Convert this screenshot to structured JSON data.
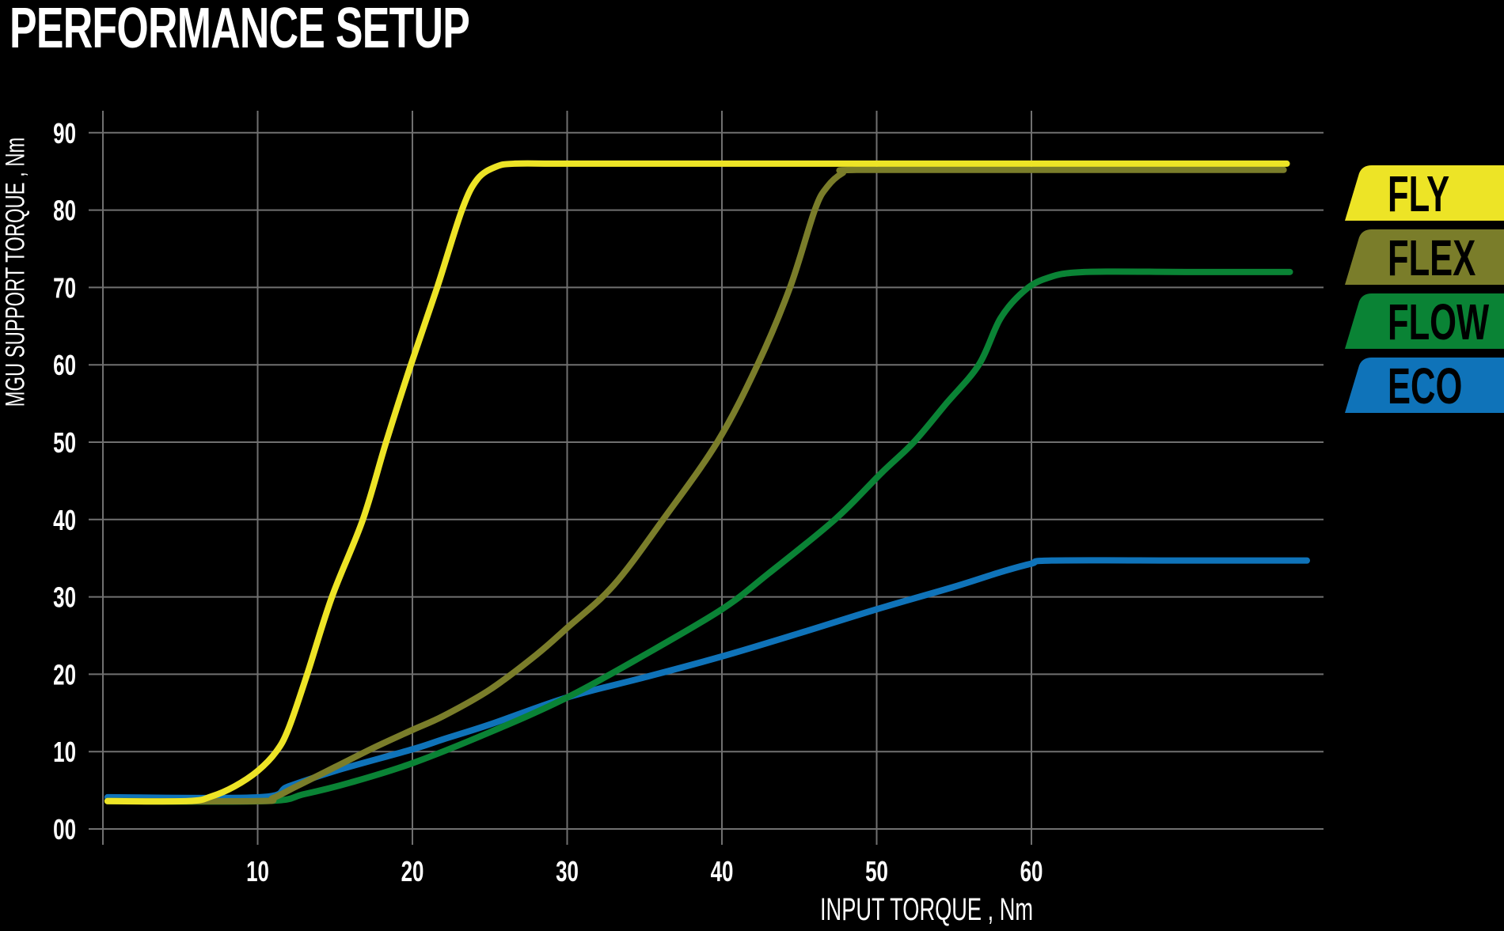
{
  "title": "PERFORMANCE SETUP",
  "chart_data": {
    "type": "line",
    "title": "PERFORMANCE SETUP",
    "xlabel": "INPUT TORQUE , Nm",
    "ylabel": "MGU SUPPORT TORQUE , Nm",
    "xlim": [
      0,
      80
    ],
    "ylim": [
      0,
      90
    ],
    "x_ticks": [
      "10",
      "20",
      "30",
      "40",
      "50",
      "60"
    ],
    "y_ticks": [
      "00",
      "10",
      "20",
      "30",
      "40",
      "50",
      "60",
      "70",
      "80",
      "90"
    ],
    "grid": true,
    "legend_position": "right",
    "series": [
      {
        "name": "FLY",
        "color": "#ede426",
        "points": [
          [
            0.3,
            3.6
          ],
          [
            5.5,
            3.6
          ],
          [
            7,
            4.2
          ],
          [
            8.5,
            5.5
          ],
          [
            10,
            7.5
          ],
          [
            11.2,
            10
          ],
          [
            12,
            13
          ],
          [
            13.2,
            20
          ],
          [
            14.8,
            30
          ],
          [
            16.8,
            40
          ],
          [
            18.3,
            50
          ],
          [
            19.9,
            60
          ],
          [
            21.6,
            70
          ],
          [
            23.2,
            80
          ],
          [
            24.2,
            84
          ],
          [
            25.4,
            85.6
          ],
          [
            26.6,
            86
          ],
          [
            30,
            86
          ],
          [
            40,
            86
          ],
          [
            50,
            86
          ],
          [
            60,
            86
          ],
          [
            76.5,
            86
          ]
        ]
      },
      {
        "name": "FLEX",
        "color": "#7a7d2a",
        "points": [
          [
            0.3,
            3.6
          ],
          [
            10,
            3.6
          ],
          [
            11,
            4
          ],
          [
            12.5,
            5.5
          ],
          [
            15,
            8
          ],
          [
            17.5,
            10.5
          ],
          [
            20,
            12.8
          ],
          [
            22,
            14.6
          ],
          [
            25,
            18
          ],
          [
            28,
            22.5
          ],
          [
            30,
            26
          ],
          [
            33,
            31.5
          ],
          [
            36.2,
            40
          ],
          [
            39.7,
            50
          ],
          [
            42.3,
            60
          ],
          [
            44.4,
            70
          ],
          [
            46,
            80
          ],
          [
            46.8,
            83
          ],
          [
            47.8,
            84.8
          ],
          [
            48.7,
            85.2
          ],
          [
            60,
            85.2
          ],
          [
            76.3,
            85.2
          ]
        ]
      },
      {
        "name": "FLOW",
        "color": "#0a8335",
        "points": [
          [
            0.3,
            3.6
          ],
          [
            10.5,
            3.6
          ],
          [
            13,
            4.5
          ],
          [
            16,
            6
          ],
          [
            20,
            8.5
          ],
          [
            25,
            12.5
          ],
          [
            30,
            17
          ],
          [
            35,
            22.5
          ],
          [
            40,
            28.4
          ],
          [
            43,
            33
          ],
          [
            47.3,
            40
          ],
          [
            50.3,
            46
          ],
          [
            52.4,
            50
          ],
          [
            54.5,
            55
          ],
          [
            56.6,
            60
          ],
          [
            58,
            66
          ],
          [
            59.5,
            69.5
          ],
          [
            61,
            71.2
          ],
          [
            63.4,
            72
          ],
          [
            70,
            72
          ],
          [
            76.7,
            72
          ]
        ]
      },
      {
        "name": "ECO",
        "color": "#0f73b9",
        "points": [
          [
            0.3,
            4.1
          ],
          [
            10.1,
            4.1
          ],
          [
            12,
            5.5
          ],
          [
            15,
            7.5
          ],
          [
            20,
            10.3
          ],
          [
            22,
            11.6
          ],
          [
            25,
            13.5
          ],
          [
            30,
            17
          ],
          [
            35,
            19.6
          ],
          [
            40,
            22.3
          ],
          [
            45,
            25.3
          ],
          [
            50,
            28.4
          ],
          [
            55,
            31.3
          ],
          [
            58,
            33.2
          ],
          [
            60,
            34.3
          ],
          [
            61.3,
            34.7
          ],
          [
            70,
            34.7
          ],
          [
            77.8,
            34.7
          ]
        ]
      }
    ]
  },
  "legend": {
    "items": [
      {
        "label": "FLY",
        "color": "#ede426"
      },
      {
        "label": "FLEX",
        "color": "#7a7d2a"
      },
      {
        "label": "FLOW",
        "color": "#0a8335"
      },
      {
        "label": "ECO",
        "color": "#0f73b9"
      }
    ]
  },
  "axes": {
    "x_label": "INPUT TORQUE , Nm",
    "y_label": "MGU SUPPORT TORQUE , Nm"
  }
}
